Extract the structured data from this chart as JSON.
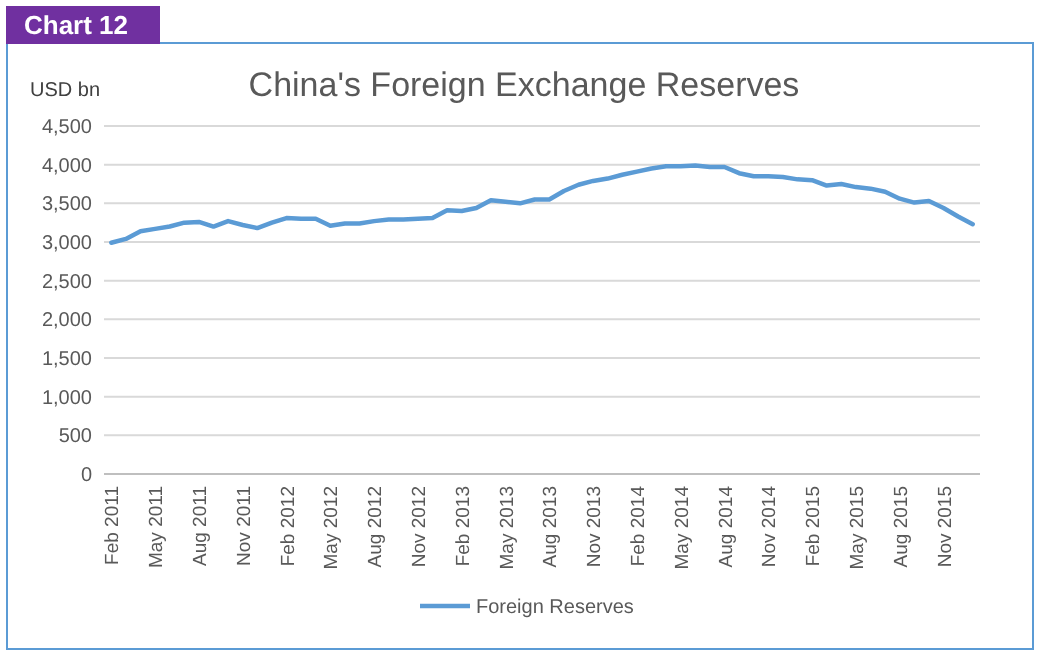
{
  "chart_data": {
    "type": "line",
    "title": "China's Foreign Exchange Reserves",
    "ylabel": "USD bn",
    "annotations": [
      "Chart 12"
    ],
    "categories": [
      "Feb 2011",
      null,
      null,
      "May 2011",
      null,
      null,
      "Aug 2011",
      null,
      null,
      "Nov 2011",
      null,
      null,
      "Feb 2012",
      null,
      null,
      "May 2012",
      null,
      null,
      "Aug 2012",
      null,
      null,
      "Nov 2012",
      null,
      null,
      "Feb 2013",
      null,
      null,
      "May 2013",
      null,
      null,
      "Aug 2013",
      null,
      null,
      "Nov 2013",
      null,
      null,
      "Feb 2014",
      null,
      null,
      "May 2014",
      null,
      null,
      "Aug 2014",
      null,
      null,
      "Nov 2014",
      null,
      null,
      "Feb 2015",
      null,
      null,
      "May 2015",
      null,
      null,
      "Aug 2015",
      null,
      null,
      "Nov 2015",
      null,
      null
    ],
    "series": [
      {
        "name": "Foreign Reserves",
        "color": "#5b9bd5",
        "values": [
          2990,
          3040,
          3140,
          3170,
          3200,
          3250,
          3260,
          3200,
          3270,
          3220,
          3180,
          3250,
          3310,
          3300,
          3300,
          3210,
          3240,
          3240,
          3270,
          3290,
          3290,
          3300,
          3310,
          3410,
          3400,
          3440,
          3540,
          3520,
          3500,
          3550,
          3550,
          3660,
          3740,
          3790,
          3820,
          3870,
          3910,
          3950,
          3980,
          3980,
          3990,
          3970,
          3970,
          3890,
          3850,
          3850,
          3840,
          3810,
          3800,
          3730,
          3750,
          3710,
          3690,
          3650,
          3560,
          3510,
          3530,
          3440,
          3330,
          3230
        ]
      }
    ],
    "ylim": [
      0,
      4500
    ],
    "yticks": [
      0,
      {
        "value": 500,
        "label": "500"
      },
      {
        "value": 1000,
        "label": "1,000"
      },
      {
        "value": 1500,
        "label": "1,500"
      },
      {
        "value": 2000,
        "label": "2,000"
      },
      {
        "value": 2500,
        "label": "2,500"
      },
      {
        "value": 3000,
        "label": "3,000"
      },
      {
        "value": 3500,
        "label": "3,500"
      },
      {
        "value": 4000,
        "label": "4,000"
      },
      {
        "value": 4500,
        "label": "4,500"
      }
    ],
    "grid": "y",
    "legend": "bottom",
    "marker": "none",
    "line_style": "solid"
  }
}
